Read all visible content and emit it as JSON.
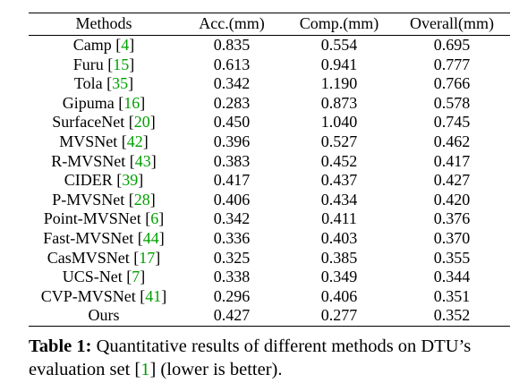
{
  "table": {
    "headers": [
      "Methods",
      "Acc.(mm)",
      "Comp.(mm)",
      "Overall(mm)"
    ],
    "rows": [
      {
        "method": "Camp",
        "ref": "4",
        "acc": "0.835",
        "comp": "0.554",
        "overall": "0.695",
        "bold": []
      },
      {
        "method": "Furu",
        "ref": "15",
        "acc": "0.613",
        "comp": "0.941",
        "overall": "0.777",
        "bold": []
      },
      {
        "method": "Tola",
        "ref": "35",
        "acc": "0.342",
        "comp": "1.190",
        "overall": "0.766",
        "bold": []
      },
      {
        "method": "Gipuma",
        "ref": "16",
        "acc": "0.283",
        "comp": "0.873",
        "overall": "0.578",
        "bold": [
          "acc"
        ]
      },
      {
        "method": "SurfaceNet",
        "ref": "20",
        "acc": "0.450",
        "comp": "1.040",
        "overall": "0.745",
        "bold": []
      },
      {
        "method": "MVSNet",
        "ref": "42",
        "acc": "0.396",
        "comp": "0.527",
        "overall": "0.462",
        "bold": []
      },
      {
        "method": "R-MVSNet",
        "ref": "43",
        "acc": "0.383",
        "comp": "0.452",
        "overall": "0.417",
        "bold": []
      },
      {
        "method": "CIDER",
        "ref": "39",
        "acc": "0.417",
        "comp": "0.437",
        "overall": "0.427",
        "bold": []
      },
      {
        "method": "P-MVSNet",
        "ref": "28",
        "acc": "0.406",
        "comp": "0.434",
        "overall": "0.420",
        "bold": []
      },
      {
        "method": "Point-MVSNet",
        "ref": "6",
        "acc": "0.342",
        "comp": "0.411",
        "overall": "0.376",
        "bold": []
      },
      {
        "method": "Fast-MVSNet",
        "ref": "44",
        "acc": "0.336",
        "comp": "0.403",
        "overall": "0.370",
        "bold": []
      },
      {
        "method": "CasMVSNet",
        "ref": "17",
        "acc": "0.325",
        "comp": "0.385",
        "overall": "0.355",
        "bold": []
      },
      {
        "method": "UCS-Net",
        "ref": "7",
        "acc": "0.338",
        "comp": "0.349",
        "overall": "0.344",
        "bold": [
          "overall"
        ]
      },
      {
        "method": "CVP-MVSNet",
        "ref": "41",
        "acc": "0.296",
        "comp": "0.406",
        "overall": "0.351",
        "bold": []
      },
      {
        "method": "Ours",
        "ref": "",
        "acc": "0.427",
        "comp": "0.277",
        "overall": "0.352",
        "bold": [
          "comp"
        ]
      }
    ]
  },
  "caption": {
    "label": "Table 1:",
    "text_before": " Quantitative results of different methods on DTU’s evaluation set [",
    "ref": "1",
    "text_after": "] (lower is better)."
  },
  "colors": {
    "citation": "#00a000",
    "text": "#000000",
    "background": "#ffffff"
  }
}
